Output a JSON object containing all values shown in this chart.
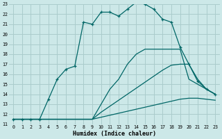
{
  "xlabel": "Humidex (Indice chaleur)",
  "background_color": "#cce8e8",
  "grid_color": "#aacccc",
  "line_color": "#006666",
  "xlim": [
    -0.5,
    23.5
  ],
  "ylim": [
    11,
    23
  ],
  "xticks": [
    0,
    1,
    2,
    3,
    4,
    5,
    6,
    7,
    8,
    9,
    10,
    11,
    12,
    13,
    14,
    15,
    16,
    17,
    18,
    19,
    20,
    21,
    22,
    23
  ],
  "yticks": [
    11,
    12,
    13,
    14,
    15,
    16,
    17,
    18,
    19,
    20,
    21,
    22,
    23
  ],
  "lines": [
    {
      "x": [
        0,
        1,
        2,
        3,
        4,
        5,
        6,
        7,
        8,
        9,
        10,
        11,
        12,
        13,
        14,
        15,
        16,
        17,
        18,
        19,
        20,
        21,
        22,
        23
      ],
      "y": [
        11.5,
        11.5,
        11.5,
        11.5,
        11.5,
        11.5,
        11.5,
        11.5,
        11.5,
        11.5,
        11.7,
        11.9,
        12.1,
        12.3,
        12.5,
        12.7,
        12.9,
        13.1,
        13.3,
        13.5,
        13.6,
        13.6,
        13.5,
        13.4
      ],
      "marker": false
    },
    {
      "x": [
        0,
        1,
        2,
        3,
        4,
        5,
        6,
        7,
        8,
        9,
        10,
        11,
        12,
        13,
        14,
        15,
        16,
        17,
        18,
        19,
        20,
        21,
        22,
        23
      ],
      "y": [
        11.5,
        11.5,
        11.5,
        11.5,
        11.5,
        11.5,
        11.5,
        11.5,
        11.5,
        11.5,
        12.2,
        12.8,
        13.4,
        14.0,
        14.6,
        15.2,
        15.8,
        16.4,
        16.9,
        17.0,
        17.0,
        15.5,
        14.5,
        14.0
      ],
      "marker": false
    },
    {
      "x": [
        0,
        1,
        2,
        3,
        4,
        5,
        6,
        7,
        8,
        9,
        10,
        11,
        12,
        13,
        14,
        15,
        16,
        17,
        18,
        19,
        20,
        21,
        22,
        23
      ],
      "y": [
        11.5,
        11.5,
        11.5,
        11.5,
        11.5,
        11.5,
        11.5,
        11.5,
        11.5,
        11.5,
        13.0,
        14.5,
        15.5,
        17.0,
        18.0,
        18.5,
        18.5,
        18.5,
        18.5,
        18.5,
        15.5,
        15.0,
        14.5,
        14.0
      ],
      "marker": false
    },
    {
      "x": [
        0,
        1,
        2,
        3,
        4,
        5,
        6,
        7,
        8,
        9,
        10,
        11,
        12,
        13,
        14,
        15,
        16,
        17,
        18,
        19,
        20,
        21,
        22,
        23
      ],
      "y": [
        11.5,
        11.5,
        11.5,
        11.5,
        13.5,
        15.5,
        16.5,
        16.8,
        21.2,
        21.0,
        22.2,
        22.2,
        21.8,
        22.5,
        23.2,
        23.0,
        22.5,
        21.5,
        21.2,
        18.7,
        17.0,
        15.3,
        14.5,
        14.0
      ],
      "marker": true
    }
  ]
}
